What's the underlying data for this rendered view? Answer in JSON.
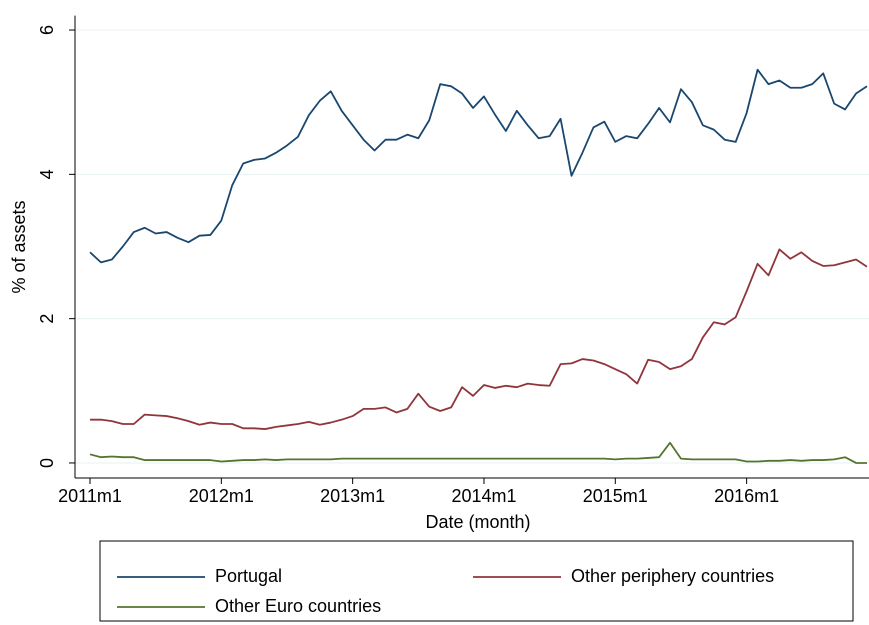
{
  "chart_data": {
    "type": "line",
    "x_label": "Date (month)",
    "y_label": "% of assets",
    "x": [
      "2011m1",
      "2011m2",
      "2011m3",
      "2011m4",
      "2011m5",
      "2011m6",
      "2011m7",
      "2011m8",
      "2011m9",
      "2011m10",
      "2011m11",
      "2011m12",
      "2012m1",
      "2012m2",
      "2012m3",
      "2012m4",
      "2012m5",
      "2012m6",
      "2012m7",
      "2012m8",
      "2012m9",
      "2012m10",
      "2012m11",
      "2012m12",
      "2013m1",
      "2013m2",
      "2013m3",
      "2013m4",
      "2013m5",
      "2013m6",
      "2013m7",
      "2013m8",
      "2013m9",
      "2013m10",
      "2013m11",
      "2013m12",
      "2014m1",
      "2014m2",
      "2014m3",
      "2014m4",
      "2014m5",
      "2014m6",
      "2014m7",
      "2014m8",
      "2014m9",
      "2014m10",
      "2014m11",
      "2014m12",
      "2015m1",
      "2015m2",
      "2015m3",
      "2015m4",
      "2015m5",
      "2015m6",
      "2015m7",
      "2015m8",
      "2015m9",
      "2015m10",
      "2015m11",
      "2015m12",
      "2016m1",
      "2016m2",
      "2016m3",
      "2016m4",
      "2016m5",
      "2016m6",
      "2016m7",
      "2016m8",
      "2016m9",
      "2016m10",
      "2016m11",
      "2016m12"
    ],
    "xticks": [
      "2011m1",
      "2012m1",
      "2013m1",
      "2014m1",
      "2015m1",
      "2016m1"
    ],
    "ylim": [
      -0.2,
      6.2
    ],
    "yticks": [
      0,
      2,
      4,
      6
    ],
    "grid": true,
    "series": [
      {
        "name": "Portugal",
        "color": "#1a476f",
        "values": [
          2.92,
          2.78,
          2.82,
          3.0,
          3.2,
          3.26,
          3.18,
          3.2,
          3.12,
          3.06,
          3.15,
          3.16,
          3.36,
          3.85,
          4.15,
          4.2,
          4.22,
          4.3,
          4.4,
          4.52,
          4.82,
          5.02,
          5.15,
          4.88,
          4.68,
          4.48,
          4.33,
          4.48,
          4.48,
          4.55,
          4.5,
          4.75,
          5.25,
          5.22,
          5.12,
          4.92,
          5.08,
          4.83,
          4.6,
          4.88,
          4.68,
          4.5,
          4.53,
          4.77,
          3.98,
          4.3,
          4.65,
          4.73,
          4.45,
          4.53,
          4.5,
          4.7,
          4.92,
          4.72,
          5.18,
          5.0,
          4.68,
          4.62,
          4.48,
          4.45,
          4.85,
          5.45,
          5.25,
          5.3,
          5.2,
          5.2,
          5.25,
          5.4,
          4.98,
          4.9,
          5.12,
          5.22
        ]
      },
      {
        "name": "Other periphery countries",
        "color": "#90353b",
        "values": [
          0.6,
          0.6,
          0.58,
          0.54,
          0.54,
          0.67,
          0.66,
          0.65,
          0.62,
          0.58,
          0.53,
          0.56,
          0.54,
          0.54,
          0.48,
          0.48,
          0.47,
          0.5,
          0.52,
          0.54,
          0.57,
          0.53,
          0.56,
          0.6,
          0.65,
          0.75,
          0.75,
          0.77,
          0.7,
          0.75,
          0.96,
          0.78,
          0.72,
          0.77,
          1.05,
          0.93,
          1.08,
          1.04,
          1.07,
          1.05,
          1.1,
          1.08,
          1.07,
          1.37,
          1.38,
          1.44,
          1.42,
          1.37,
          1.3,
          1.23,
          1.1,
          1.43,
          1.4,
          1.3,
          1.34,
          1.44,
          1.74,
          1.95,
          1.92,
          2.02,
          2.38,
          2.76,
          2.6,
          2.96,
          2.83,
          2.92,
          2.8,
          2.73,
          2.74,
          2.78,
          2.82,
          2.72
        ]
      },
      {
        "name": "Other Euro countries",
        "color": "#55752f",
        "values": [
          0.12,
          0.08,
          0.09,
          0.08,
          0.08,
          0.04,
          0.04,
          0.04,
          0.04,
          0.04,
          0.04,
          0.04,
          0.02,
          0.03,
          0.04,
          0.04,
          0.05,
          0.04,
          0.05,
          0.05,
          0.05,
          0.05,
          0.05,
          0.06,
          0.06,
          0.06,
          0.06,
          0.06,
          0.06,
          0.06,
          0.06,
          0.06,
          0.06,
          0.06,
          0.06,
          0.06,
          0.06,
          0.06,
          0.06,
          0.06,
          0.06,
          0.06,
          0.06,
          0.06,
          0.06,
          0.06,
          0.06,
          0.06,
          0.05,
          0.06,
          0.06,
          0.07,
          0.08,
          0.28,
          0.06,
          0.05,
          0.05,
          0.05,
          0.05,
          0.05,
          0.02,
          0.02,
          0.03,
          0.03,
          0.04,
          0.03,
          0.04,
          0.04,
          0.05,
          0.08,
          0.0,
          0.0
        ]
      }
    ]
  }
}
